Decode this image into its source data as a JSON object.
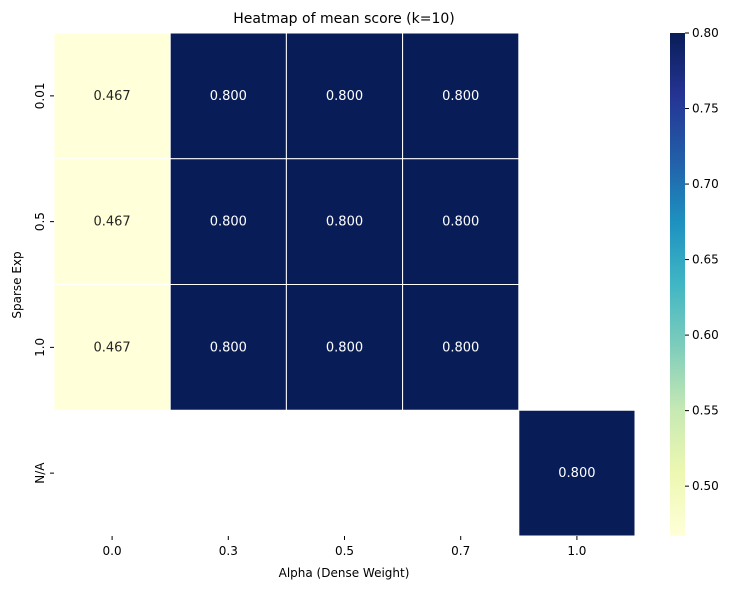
{
  "chart_data": {
    "type": "heatmap",
    "title": "Heatmap of mean score (k=10)",
    "xlabel": "Alpha (Dense Weight)",
    "ylabel": "Sparse Exp",
    "x_categories": [
      "0.0",
      "0.3",
      "0.5",
      "0.7",
      "1.0"
    ],
    "y_categories": [
      "0.01",
      "0.5",
      "1.0",
      "N/A"
    ],
    "values": [
      [
        0.467,
        0.8,
        0.8,
        0.8,
        null
      ],
      [
        0.467,
        0.8,
        0.8,
        0.8,
        null
      ],
      [
        0.467,
        0.8,
        0.8,
        0.8,
        null
      ],
      [
        null,
        null,
        null,
        null,
        0.8
      ]
    ],
    "value_labels": [
      [
        "0.467",
        "0.800",
        "0.800",
        "0.800",
        ""
      ],
      [
        "0.467",
        "0.800",
        "0.800",
        "0.800",
        ""
      ],
      [
        "0.467",
        "0.800",
        "0.800",
        "0.800",
        ""
      ],
      [
        "",
        "",
        "",
        "",
        "0.800"
      ]
    ],
    "colormap": "YlGnBu",
    "vmin": 0.467,
    "vmax": 0.8,
    "colorbar_ticks": [
      0.5,
      0.55,
      0.6,
      0.65,
      0.7,
      0.75,
      0.8
    ],
    "colorbar_tick_labels": [
      "0.50",
      "0.55",
      "0.60",
      "0.65",
      "0.70",
      "0.75",
      "0.80"
    ]
  }
}
